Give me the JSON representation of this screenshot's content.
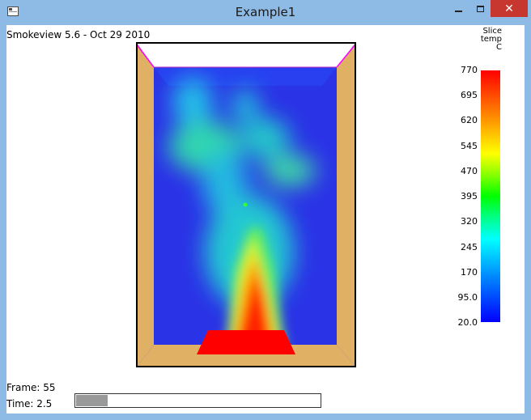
{
  "window": {
    "title": "Example1"
  },
  "header": {
    "version": "Smokeview 5.6 - Oct 29 2010"
  },
  "colorbar": {
    "header": [
      "Slice",
      "temp",
      "C"
    ],
    "ticks": [
      "770",
      "695",
      "620",
      "545",
      "470",
      "395",
      "320",
      "245",
      "170",
      "95.0",
      "20.0"
    ]
  },
  "status": {
    "frame_label": "Frame: 55",
    "time_label": "Time:  2.5",
    "progress_fraction": 0.13
  },
  "colors": {
    "wall": "#e0b065",
    "back_wall": "#2b33e6",
    "fire": "#ff0000",
    "ceiling_edge": "#ff00ff"
  }
}
